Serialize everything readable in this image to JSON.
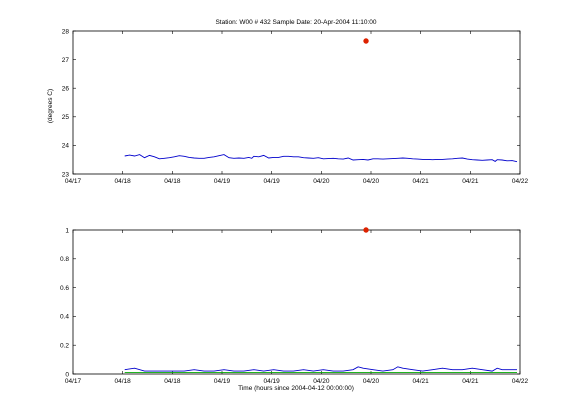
{
  "chart_data": [
    {
      "type": "line",
      "title": "Station: W00 # 432   Sample Date: 20-Apr-2004 11:10:00",
      "xlabel": "",
      "ylabel": "(degrees C)",
      "xlim": [
        0,
        4.5
      ],
      "ylim": [
        23,
        28
      ],
      "x_tick_values": [
        0,
        0.5,
        1,
        1.5,
        2,
        2.5,
        3,
        3.5,
        4,
        4.5
      ],
      "x_tick_labels": [
        "04/17",
        "04/18",
        "04/18",
        "04/19",
        "04/19",
        "04/20",
        "04/20",
        "04/21",
        "04/21",
        "04/22"
      ],
      "y_tick_values": [
        23,
        24,
        25,
        26,
        27,
        28
      ],
      "y_tick_labels": [
        "23",
        "24",
        "25",
        "26",
        "27",
        "28"
      ],
      "grid": false,
      "series": [
        {
          "color": "#0000cc",
          "style": "line",
          "x": [
            0.52,
            0.57,
            0.62,
            0.67,
            0.72,
            0.77,
            0.82,
            0.87,
            0.92,
            0.97,
            1.02,
            1.07,
            1.12,
            1.17,
            1.22,
            1.27,
            1.32,
            1.37,
            1.42,
            1.47,
            1.52,
            1.57,
            1.62,
            1.67,
            1.72,
            1.77,
            1.8,
            1.82,
            1.87,
            1.92,
            1.97,
            2.02,
            2.07,
            2.12,
            2.17,
            2.22,
            2.27,
            2.32,
            2.37,
            2.42,
            2.47,
            2.52,
            2.57,
            2.62,
            2.67,
            2.72,
            2.77,
            2.82,
            2.87,
            2.92,
            2.97,
            3.02,
            3.07,
            3.12,
            3.17,
            3.22,
            3.27,
            3.32,
            3.37,
            3.42,
            3.47,
            3.52,
            3.57,
            3.62,
            3.67,
            3.72,
            3.77,
            3.82,
            3.87,
            3.92,
            3.97,
            4.02,
            4.07,
            4.12,
            4.17,
            4.22,
            4.25,
            4.27,
            4.32,
            4.37,
            4.42,
            4.47
          ],
          "y": [
            23.63,
            23.66,
            23.63,
            23.68,
            23.57,
            23.65,
            23.6,
            23.53,
            23.55,
            23.57,
            23.6,
            23.64,
            23.62,
            23.58,
            23.56,
            23.55,
            23.55,
            23.58,
            23.6,
            23.64,
            23.68,
            23.57,
            23.55,
            23.56,
            23.55,
            23.58,
            23.55,
            23.62,
            23.6,
            23.65,
            23.56,
            23.58,
            23.58,
            23.62,
            23.62,
            23.6,
            23.6,
            23.57,
            23.56,
            23.55,
            23.57,
            23.53,
            23.54,
            23.55,
            23.53,
            23.52,
            23.56,
            23.49,
            23.5,
            23.51,
            23.49,
            23.53,
            23.53,
            23.52,
            23.53,
            23.54,
            23.55,
            23.56,
            23.55,
            23.53,
            23.52,
            23.51,
            23.51,
            23.5,
            23.51,
            23.51,
            23.52,
            23.53,
            23.55,
            23.56,
            23.52,
            23.5,
            23.49,
            23.48,
            23.49,
            23.5,
            23.44,
            23.5,
            23.49,
            23.46,
            23.47,
            23.43
          ]
        },
        {
          "color": "#dd2200",
          "style": "marker",
          "x": [
            2.95
          ],
          "y": [
            27.65
          ]
        }
      ]
    },
    {
      "type": "line",
      "title": "",
      "xlabel": "Time (hours since 2004-04-12 00:00:00)",
      "ylabel": "",
      "xlim": [
        0,
        4.5
      ],
      "ylim": [
        0,
        1
      ],
      "x_tick_values": [
        0,
        0.5,
        1,
        1.5,
        2,
        2.5,
        3,
        3.5,
        4,
        4.5
      ],
      "x_tick_labels": [
        "04/17",
        "04/18",
        "04/18",
        "04/19",
        "04/19",
        "04/20",
        "04/20",
        "04/21",
        "04/21",
        "04/22"
      ],
      "y_tick_values": [
        0,
        0.2,
        0.4,
        0.6,
        0.8,
        1
      ],
      "y_tick_labels": [
        "0",
        "0.2",
        "0.4",
        "0.6",
        "0.8",
        "1"
      ],
      "grid": false,
      "series": [
        {
          "color": "#0000cc",
          "style": "line",
          "x": [
            0.52,
            0.62,
            0.72,
            0.82,
            0.92,
            1.02,
            1.12,
            1.22,
            1.32,
            1.42,
            1.52,
            1.62,
            1.72,
            1.82,
            1.92,
            2.02,
            2.12,
            2.22,
            2.32,
            2.42,
            2.52,
            2.62,
            2.72,
            2.82,
            2.87,
            2.92,
            3.02,
            3.12,
            3.22,
            3.27,
            3.32,
            3.42,
            3.52,
            3.62,
            3.72,
            3.82,
            3.92,
            4.02,
            4.12,
            4.22,
            4.27,
            4.32,
            4.42,
            4.47
          ],
          "y": [
            0.03,
            0.04,
            0.02,
            0.02,
            0.02,
            0.02,
            0.02,
            0.03,
            0.02,
            0.02,
            0.03,
            0.02,
            0.02,
            0.03,
            0.02,
            0.03,
            0.02,
            0.02,
            0.03,
            0.02,
            0.03,
            0.02,
            0.02,
            0.03,
            0.05,
            0.04,
            0.03,
            0.02,
            0.03,
            0.05,
            0.04,
            0.03,
            0.02,
            0.03,
            0.04,
            0.03,
            0.03,
            0.04,
            0.03,
            0.02,
            0.04,
            0.03,
            0.03,
            0.03
          ]
        },
        {
          "color": "#00aa00",
          "style": "line",
          "x": [
            0.52,
            0.72,
            0.92,
            1.12,
            1.32,
            1.52,
            1.72,
            1.92,
            2.12,
            2.32,
            2.52,
            2.72,
            2.92,
            3.12,
            3.32,
            3.52,
            3.72,
            3.92,
            4.12,
            4.32,
            4.47
          ],
          "y": [
            0.01,
            0.01,
            0.01,
            0.01,
            0.01,
            0.01,
            0.01,
            0.01,
            0.01,
            0.01,
            0.01,
            0.01,
            0.01,
            0.01,
            0.01,
            0.01,
            0.01,
            0.01,
            0.01,
            0.01,
            0.01
          ]
        },
        {
          "color": "#dd2200",
          "style": "marker",
          "x": [
            2.95
          ],
          "y": [
            1.0
          ]
        }
      ]
    }
  ]
}
